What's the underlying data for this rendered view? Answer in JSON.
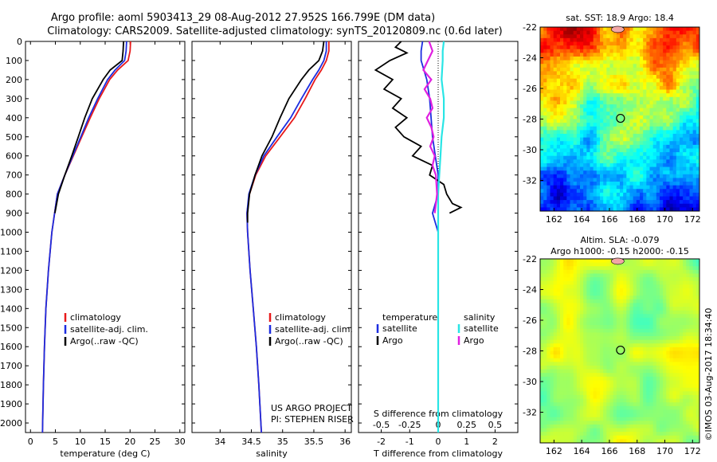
{
  "header": {
    "title_line1": "Argo profile: aoml 5903413_29 08-Aug-2012 27.952S 166.799E (DM data)",
    "title_line2": "Climatology: CARS2009. Satellite-adjusted climatology: synTS_20120809.nc (0.6d later)"
  },
  "colors": {
    "climatology": "#e8191a",
    "satellite": "#1c2de0",
    "argo": "#000000",
    "cyan": "#29e5e5",
    "magenta": "#e020e0"
  },
  "footer_credit": "©IMOS 03-Aug-2017 18:34:40",
  "chart_data": [
    {
      "id": "temperature",
      "type": "line",
      "xlabel": "temperature (deg C)",
      "ylim": [
        2050,
        0
      ],
      "xlim": [
        -1,
        31
      ],
      "xticks": [
        0,
        5,
        10,
        15,
        20,
        25,
        30
      ],
      "yticks": [
        0,
        100,
        200,
        300,
        400,
        500,
        600,
        700,
        800,
        900,
        1000,
        1100,
        1200,
        1300,
        1400,
        1500,
        1600,
        1700,
        1800,
        1900,
        2000
      ],
      "legend": {
        "position": "lower-left",
        "entries": [
          "climatology",
          "satellite-adj. clim.",
          "Argo(..raw -QC)"
        ]
      },
      "series": [
        {
          "name": "climatology",
          "color": "climatology",
          "depth": [
            0,
            50,
            100,
            150,
            200,
            300,
            400,
            500,
            600,
            700,
            800,
            1000,
            1200,
            1400,
            1600,
            1800,
            2050
          ],
          "values": [
            20.1,
            20.0,
            19.6,
            17.5,
            15.9,
            13.8,
            12.0,
            10.3,
            8.6,
            6.9,
            5.4,
            4.3,
            3.6,
            3.1,
            2.8,
            2.6,
            2.4
          ]
        },
        {
          "name": "satellite-adj. clim.",
          "color": "satellite",
          "depth": [
            0,
            50,
            100,
            150,
            200,
            300,
            400,
            500,
            600,
            700,
            800,
            1000,
            1200,
            1400,
            1600,
            1800,
            2050
          ],
          "values": [
            19.3,
            19.2,
            18.9,
            17.0,
            15.5,
            13.5,
            11.7,
            10.1,
            8.5,
            6.9,
            5.4,
            4.3,
            3.6,
            3.1,
            2.8,
            2.6,
            2.4
          ]
        },
        {
          "name": "Argo(..raw -QC)",
          "color": "argo",
          "depth": [
            0,
            50,
            100,
            150,
            200,
            300,
            400,
            500,
            600,
            700,
            800,
            900
          ],
          "values": [
            18.7,
            18.6,
            18.4,
            16.0,
            14.6,
            12.4,
            10.9,
            9.6,
            8.3,
            6.9,
            5.6,
            4.9
          ]
        }
      ]
    },
    {
      "id": "salinity",
      "type": "line",
      "xlabel": "salinity",
      "ylim": [
        2050,
        0
      ],
      "xlim": [
        33.55,
        36.1
      ],
      "xticks": [
        34,
        34.5,
        35,
        35.5,
        36
      ],
      "legend": {
        "position": "lower-left",
        "entries": [
          "climatology",
          "satellite-adj. clim.",
          "Argo(..raw -QC)"
        ]
      },
      "annotation": [
        "US ARGO PROJECT",
        "PI: STEPHEN RISER"
      ],
      "series": [
        {
          "name": "climatology",
          "color": "climatology",
          "depth": [
            0,
            50,
            100,
            150,
            200,
            300,
            400,
            500,
            600,
            700,
            800,
            900,
            1000,
            1200,
            1400,
            1600,
            1800,
            2050
          ],
          "values": [
            35.74,
            35.74,
            35.7,
            35.62,
            35.52,
            35.36,
            35.19,
            34.96,
            34.73,
            34.57,
            34.47,
            34.43,
            34.44,
            34.48,
            34.53,
            34.58,
            34.62,
            34.66
          ]
        },
        {
          "name": "satellite-adj. clim.",
          "color": "satellite",
          "depth": [
            0,
            50,
            100,
            150,
            200,
            300,
            400,
            500,
            600,
            700,
            800,
            900,
            1000,
            1200,
            1400,
            1600,
            1800,
            2050
          ],
          "values": [
            35.7,
            35.7,
            35.66,
            35.58,
            35.48,
            35.3,
            35.13,
            34.91,
            34.7,
            34.56,
            34.46,
            34.43,
            34.44,
            34.48,
            34.53,
            34.58,
            34.62,
            34.66
          ]
        },
        {
          "name": "Argo(..raw -QC)",
          "color": "argo",
          "depth": [
            0,
            50,
            100,
            150,
            200,
            300,
            400,
            500,
            600,
            700,
            800,
            900,
            950
          ],
          "values": [
            35.66,
            35.64,
            35.58,
            35.42,
            35.3,
            35.1,
            34.96,
            34.83,
            34.67,
            34.56,
            34.47,
            34.44,
            34.44
          ]
        }
      ]
    },
    {
      "id": "difference",
      "type": "line",
      "xlabel": "T difference from climatology",
      "xlabel_top": "S difference from climatology",
      "ylim": [
        2050,
        0
      ],
      "xlim": [
        -2.8,
        2.8
      ],
      "xticks_T": [
        -2,
        -1,
        0,
        1,
        2
      ],
      "xticks_S": [
        -0.5,
        -0.25,
        0,
        0.25,
        0.5
      ],
      "xtick_labels_S": [
        "-0.5",
        "-0.25",
        "0",
        "0.25",
        "0.5"
      ],
      "legend": {
        "position": "lower",
        "groups": [
          {
            "title": "temperature",
            "entries": [
              "satellite",
              "Argo"
            ]
          },
          {
            "title": "salinity",
            "entries": [
              "satellite",
              "Argo"
            ]
          }
        ]
      },
      "series": [
        {
          "name": "temperature satellite",
          "color": "satellite",
          "depth": [
            0,
            50,
            100,
            200,
            300,
            400,
            500,
            600,
            700,
            800,
            850,
            900,
            950,
            1000,
            1100
          ],
          "values": [
            -0.55,
            -0.6,
            -0.6,
            -0.4,
            -0.3,
            -0.25,
            -0.2,
            -0.1,
            0,
            0,
            -0.1,
            -0.2,
            -0.1,
            0,
            0
          ]
        },
        {
          "name": "temperature Argo",
          "color": "argo",
          "depth": [
            0,
            30,
            60,
            100,
            150,
            200,
            250,
            300,
            350,
            400,
            450,
            500,
            550,
            600,
            650,
            700,
            750,
            800,
            850,
            870,
            900
          ],
          "values": [
            -1.3,
            -1.5,
            -1.1,
            -1.7,
            -2.2,
            -1.6,
            -1.9,
            -1.3,
            -1.6,
            -1.1,
            -1.5,
            -1.2,
            -0.6,
            -0.9,
            -0.2,
            -0.3,
            0.2,
            0.3,
            0.5,
            0.8,
            0.4
          ]
        },
        {
          "name": "salinity satellite",
          "color": "cyan",
          "depth": [
            0,
            50,
            100,
            200,
            300,
            400,
            500,
            600,
            700,
            800,
            1000,
            1200,
            1500,
            2050
          ],
          "values": [
            0.05,
            0.04,
            0.04,
            0.03,
            0.05,
            0.05,
            0.03,
            0.02,
            0.01,
            0,
            0,
            0,
            0,
            0
          ]
        },
        {
          "name": "salinity Argo",
          "color": "magenta",
          "depth": [
            0,
            50,
            100,
            150,
            200,
            250,
            300,
            350,
            400,
            450,
            500,
            550,
            600,
            650,
            700,
            800,
            900
          ],
          "values": [
            -0.08,
            -0.05,
            -0.09,
            -0.13,
            -0.06,
            -0.12,
            -0.07,
            -0.05,
            -0.1,
            -0.06,
            -0.04,
            -0.07,
            -0.03,
            -0.05,
            -0.02,
            -0.01,
            -0.03
          ]
        }
      ]
    },
    {
      "id": "sst_map",
      "type": "heatmap",
      "title": "sat. SST: 18.9 Argo: 18.4",
      "xlim": [
        161,
        172.5
      ],
      "ylim": [
        -34,
        -22
      ],
      "xticks": [
        162,
        164,
        166,
        168,
        170,
        172
      ],
      "yticks": [
        -22,
        -24,
        -26,
        -28,
        -30,
        -32
      ],
      "marker": {
        "lon": 166.8,
        "lat": -27.95
      }
    },
    {
      "id": "sla_map",
      "type": "heatmap",
      "title": "Altim. SLA: -0.079",
      "subtitle": "Argo h1000: -0.15 h2000: -0.15",
      "xlim": [
        161,
        172.5
      ],
      "ylim": [
        -34,
        -22
      ],
      "xticks": [
        162,
        164,
        166,
        168,
        170,
        172
      ],
      "yticks": [
        -22,
        -24,
        -26,
        -28,
        -30,
        -32
      ],
      "marker": {
        "lon": 166.8,
        "lat": -27.95
      }
    }
  ]
}
